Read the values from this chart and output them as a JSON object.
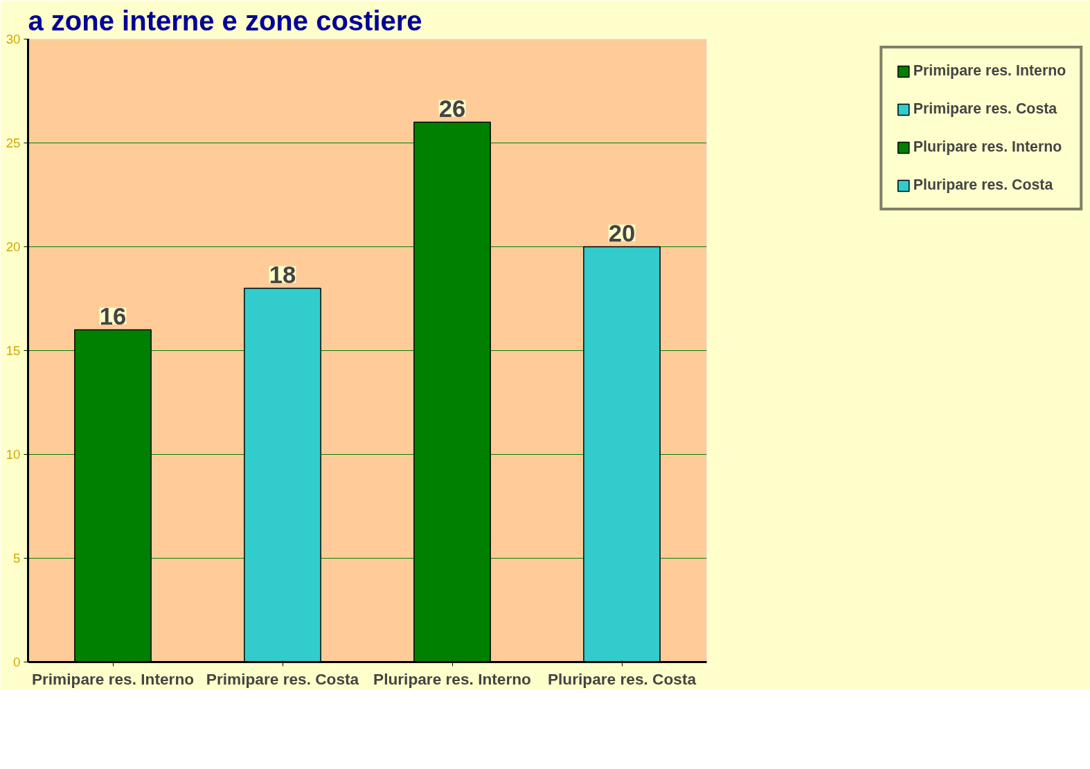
{
  "chart_data": {
    "type": "bar",
    "title": "a zone interne e zone costiere",
    "categories": [
      "Primipare res. Interno",
      "Primipare res. Costa",
      "Pluripare res. Interno",
      "Pluripare res. Costa"
    ],
    "series": [
      {
        "name": "Primipare res. Interno",
        "color": "#008000",
        "values": [
          16,
          null,
          null,
          null
        ]
      },
      {
        "name": "Primipare res. Costa",
        "color": "#33cccc",
        "values": [
          null,
          18,
          null,
          null
        ]
      },
      {
        "name": "Pluripare res. Interno",
        "color": "#008000",
        "values": [
          null,
          null,
          26,
          null
        ]
      },
      {
        "name": "Pluripare res. Costa",
        "color": "#33cccc",
        "values": [
          null,
          null,
          null,
          20
        ]
      }
    ],
    "ylim": [
      0,
      30
    ],
    "yticks": [
      0,
      5,
      10,
      15,
      20,
      25,
      30
    ],
    "grid": "y",
    "legend": "right",
    "data_labels": true
  }
}
